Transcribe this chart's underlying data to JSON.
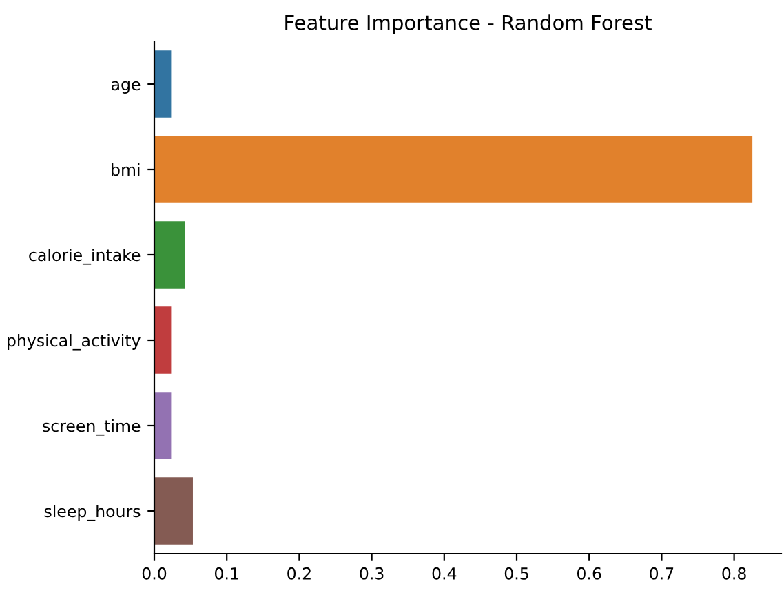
{
  "chart_data": {
    "type": "bar",
    "orientation": "horizontal",
    "title": "Feature Importance - Random Forest",
    "categories": [
      "age",
      "bmi",
      "calorie_intake",
      "physical_activity",
      "screen_time",
      "sleep_hours"
    ],
    "values": [
      0.024,
      0.826,
      0.043,
      0.024,
      0.024,
      0.054
    ],
    "colors": [
      "#3274a1",
      "#e1812c",
      "#3a923a",
      "#c03d3e",
      "#9372b2",
      "#845b53"
    ],
    "xlim": [
      0,
      0.865
    ],
    "xticks": [
      {
        "value": 0,
        "label": "0.0"
      },
      0.1,
      0.2,
      0.3,
      0.4,
      0.5,
      0.6,
      0.7,
      0.8
    ],
    "grid": false
  }
}
